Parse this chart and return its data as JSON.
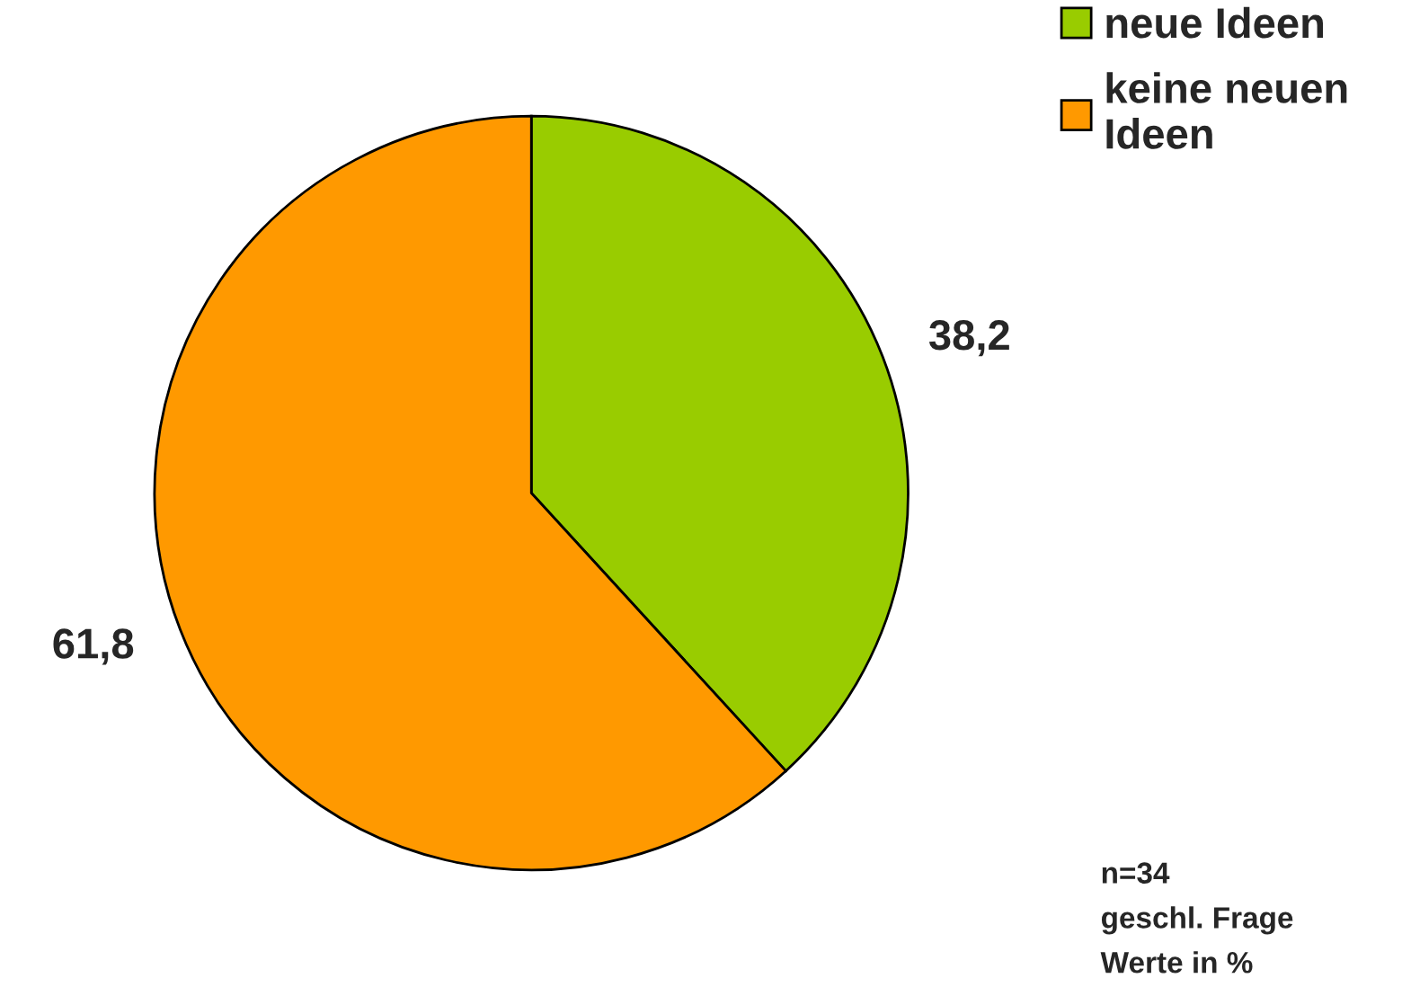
{
  "chart_data": {
    "type": "pie",
    "categories": [
      "neue Ideen",
      "keine neuen\nIdeen"
    ],
    "values": [
      38.2,
      61.8
    ],
    "colors": [
      "#99cc00",
      "#ff9900"
    ],
    "value_labels": [
      "38,2",
      "61,8"
    ],
    "legend": "top right",
    "annotations": [
      "n=34",
      "geschl. Frage",
      "Werte in %"
    ]
  }
}
